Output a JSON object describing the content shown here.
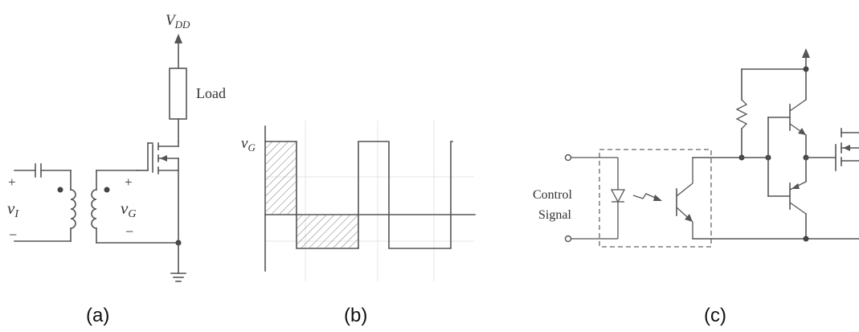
{
  "panels": [
    {
      "caption": "(a)"
    },
    {
      "caption": "(b)"
    },
    {
      "caption": "(c)"
    }
  ],
  "circuit_a": {
    "supply_label": "V",
    "supply_subscript": "DD",
    "load_label": "Load",
    "input_label": "v",
    "input_subscript": "I",
    "gate_label": "v",
    "gate_subscript": "G",
    "plus_sign": "+",
    "minus_sign": "−"
  },
  "waveform_b": {
    "signal_label": "v",
    "signal_subscript": "G"
  },
  "circuit_c": {
    "control_label_line1": "Control",
    "control_label_line2": "Signal"
  }
}
